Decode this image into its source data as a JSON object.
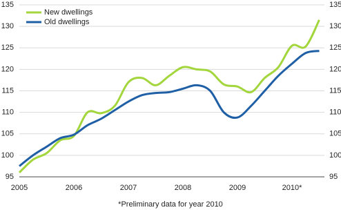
{
  "chart_data": {
    "type": "line",
    "footnote": "*Preliminary data for year 2010",
    "categories": [
      "2005",
      null,
      null,
      null,
      "2006",
      null,
      null,
      null,
      "2007",
      null,
      null,
      null,
      "2008",
      null,
      null,
      null,
      "2009",
      null,
      null,
      null,
      "2010*",
      null,
      null
    ],
    "series": [
      {
        "name": "New dwellings",
        "color": "#a3d63c",
        "values": [
          96,
          99,
          100.5,
          103.5,
          104.5,
          110,
          109.8,
          111.5,
          117,
          118,
          116.3,
          118.5,
          120.5,
          120,
          119.5,
          116.5,
          116,
          114.7,
          118,
          120.5,
          125.5,
          125.3,
          131.5
        ]
      },
      {
        "name": "Old dwellings",
        "color": "#1f5fa6",
        "values": [
          97.5,
          100,
          102,
          104,
          104.8,
          107,
          108.5,
          110.5,
          112.5,
          114,
          114.5,
          114.7,
          115.5,
          116.3,
          115,
          110,
          108.8,
          111.5,
          115,
          118.5,
          121.3,
          123.8,
          124.3
        ]
      }
    ],
    "ylim": [
      95,
      135
    ],
    "yticks": [
      95,
      100,
      105,
      110,
      115,
      120,
      125,
      130,
      135
    ],
    "y2lim": [
      95,
      135
    ],
    "y2ticks": [
      95,
      100,
      105,
      110,
      115,
      120,
      125,
      130,
      135
    ],
    "grid": true,
    "legend": "top-left"
  }
}
